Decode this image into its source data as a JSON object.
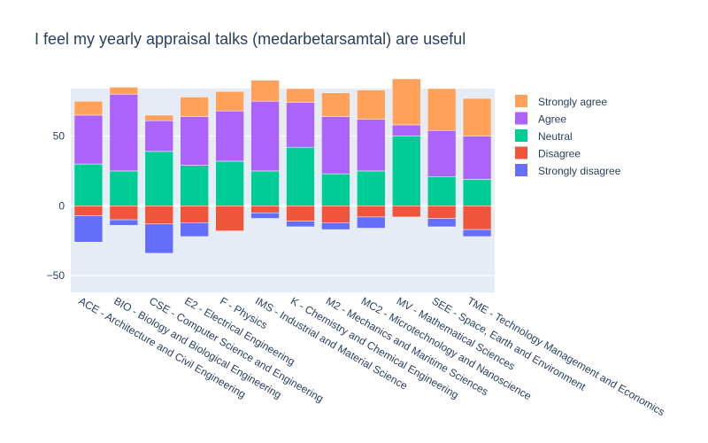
{
  "chart_data": {
    "type": "bar",
    "barmode": "relative",
    "title": "I feel my yearly appraisal talks (medarbetarsamtal) are useful",
    "xlabel": "",
    "ylabel": "",
    "ylim": [
      -62,
      84
    ],
    "yticks": [
      -50,
      0,
      50
    ],
    "grid": true,
    "legend_position": "top-right",
    "categories": [
      "ACE - Architecture and Civil Engineering",
      "BIO - Biology and Biological Engineering",
      "CSE - Computer Science and Engineering",
      "E2 - Electrical Engineering",
      "F - Physics",
      "IMS - Industrial and Material Science",
      "K - Chemistry and Chemical Engineering",
      "M2 - Mechanics and Maritime Sciences",
      "MC2 - Microtechnology and Nanoscience",
      "MV - Mathematical Sciences",
      "SEE - Space, Earth and Environment",
      "TME - Technology Management and Economics"
    ],
    "series": [
      {
        "name": "Strongly agree",
        "color": "#FFA15A",
        "values": [
          10,
          5,
          4,
          14,
          14,
          15,
          10,
          17,
          21,
          33,
          30,
          27
        ]
      },
      {
        "name": "Agree",
        "color": "#AB63FA",
        "values": [
          35,
          55,
          22,
          35,
          36,
          50,
          32,
          41,
          37,
          8,
          33,
          31
        ]
      },
      {
        "name": "Neutral",
        "color": "#00CC96",
        "values": [
          30,
          25,
          39,
          29,
          32,
          25,
          42,
          23,
          25,
          50,
          21,
          19
        ]
      },
      {
        "name": "Disagree",
        "color": "#EF553B",
        "values": [
          -7,
          -10,
          -13,
          -12,
          -18,
          -5,
          -11,
          -12,
          -8,
          -8,
          -9,
          -17
        ]
      },
      {
        "name": "Strongly disagree",
        "color": "#636EFA",
        "values": [
          -19,
          -4,
          -21,
          -10,
          0,
          -4,
          -4,
          -5,
          -8,
          0,
          -6,
          -5
        ]
      }
    ]
  }
}
